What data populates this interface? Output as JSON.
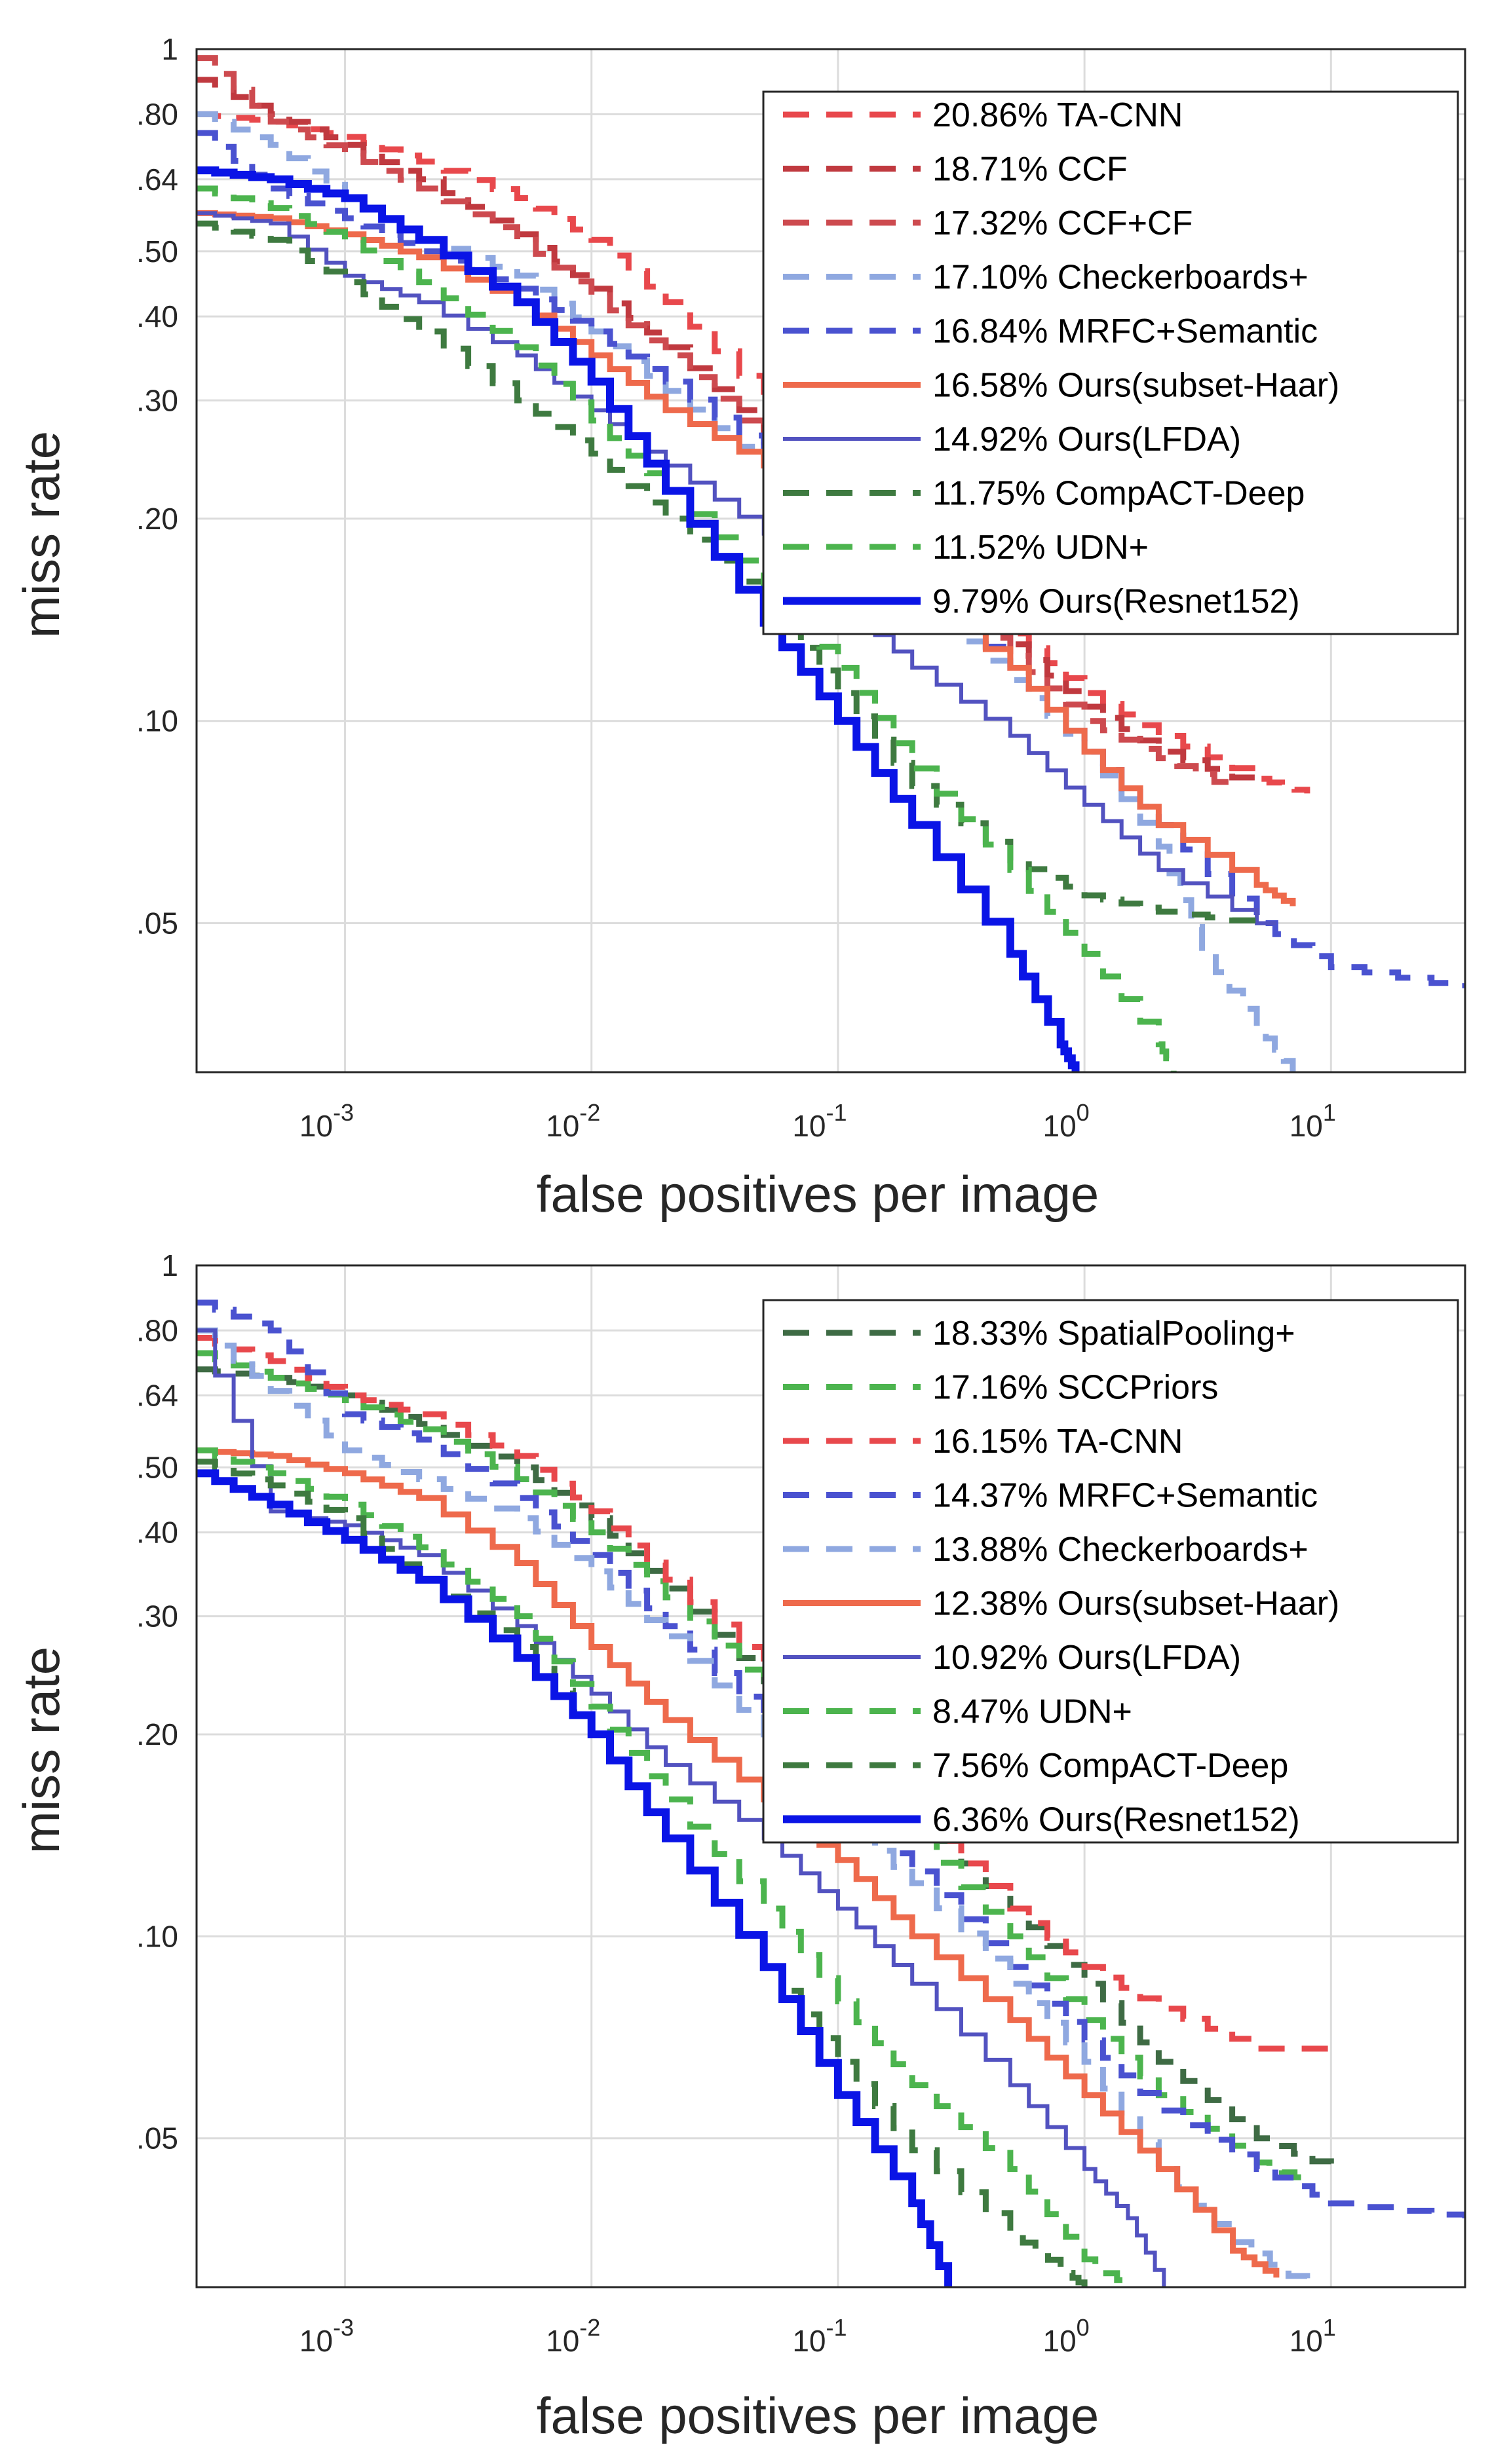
{
  "chart_data": [
    {
      "type": "line",
      "title": "",
      "xlabel": "false positives per image",
      "ylabel": "miss rate",
      "xscale": "log",
      "yscale": "log",
      "xlim": [
        0.00025,
        35
      ],
      "ylim": [
        0.03,
        1
      ],
      "grid": true,
      "legend_position": "top-right",
      "x_ticks": [
        {
          "value": 0.001,
          "base": "10",
          "exp": "-3"
        },
        {
          "value": 0.01,
          "base": "10",
          "exp": "-2"
        },
        {
          "value": 0.1,
          "base": "10",
          "exp": "-1"
        },
        {
          "value": 1,
          "base": "10",
          "exp": "0"
        },
        {
          "value": 10,
          "base": "10",
          "exp": "1"
        }
      ],
      "y_ticks": [
        {
          "value": 1,
          "label": "1"
        },
        {
          "value": 0.8,
          "label": ".80"
        },
        {
          "value": 0.64,
          "label": ".64"
        },
        {
          "value": 0.5,
          "label": ".50"
        },
        {
          "value": 0.4,
          "label": ".40"
        },
        {
          "value": 0.3,
          "label": ".30"
        },
        {
          "value": 0.2,
          "label": ".20"
        },
        {
          "value": 0.1,
          "label": ".10"
        },
        {
          "value": 0.05,
          "label": ".05"
        }
      ],
      "series": [
        {
          "name": "20.86% TA-CNN",
          "color": "#e8484c",
          "dash": "dashed",
          "width": 9,
          "x": [
            0.00025,
            0.0005,
            0.001,
            0.002,
            0.005,
            0.01,
            0.02,
            0.05,
            0.1,
            0.2,
            0.5,
            1,
            2,
            5,
            8
          ],
          "y": [
            0.8,
            0.78,
            0.74,
            0.68,
            0.6,
            0.52,
            0.42,
            0.3,
            0.23,
            0.18,
            0.135,
            0.11,
            0.095,
            0.082,
            0.078
          ]
        },
        {
          "name": "18.71% CCF",
          "color": "#c0393f",
          "dash": "dashed",
          "width": 9,
          "x": [
            0.00025,
            0.0005,
            0.001,
            0.002,
            0.005,
            0.01,
            0.02,
            0.05,
            0.1,
            0.2,
            0.5,
            1,
            2,
            5
          ],
          "y": [
            0.9,
            0.8,
            0.72,
            0.64,
            0.53,
            0.44,
            0.36,
            0.27,
            0.21,
            0.17,
            0.13,
            0.105,
            0.09,
            0.08
          ]
        },
        {
          "name": "17.32% CCF+CF",
          "color": "#cd4a4f",
          "dash": "dashed",
          "width": 9,
          "x": [
            0.00025,
            0.0005,
            0.001,
            0.002,
            0.005,
            0.01,
            0.02,
            0.05,
            0.1,
            0.2,
            0.5,
            1,
            2,
            4
          ],
          "y": [
            0.97,
            0.78,
            0.7,
            0.62,
            0.52,
            0.43,
            0.35,
            0.26,
            0.2,
            0.16,
            0.125,
            0.1,
            0.088,
            0.079
          ]
        },
        {
          "name": "17.10% Checkerboards+",
          "color": "#8fa8e0",
          "dash": "dashed",
          "width": 9,
          "x": [
            0.00025,
            0.0005,
            0.001,
            0.002,
            0.005,
            0.01,
            0.02,
            0.05,
            0.1,
            0.2,
            0.5,
            1,
            2,
            3,
            5,
            7
          ],
          "y": [
            0.8,
            0.72,
            0.6,
            0.52,
            0.46,
            0.38,
            0.31,
            0.24,
            0.19,
            0.15,
            0.115,
            0.09,
            0.065,
            0.045,
            0.035,
            0.03
          ]
        },
        {
          "name": "16.84% MRFC+Semantic",
          "color": "#4a52d0",
          "dash": "dashed",
          "width": 9,
          "x": [
            0.00025,
            0.0005,
            0.001,
            0.002,
            0.005,
            0.01,
            0.02,
            0.05,
            0.1,
            0.2,
            0.5,
            1,
            2,
            5,
            10,
            35
          ],
          "y": [
            0.75,
            0.62,
            0.56,
            0.5,
            0.44,
            0.38,
            0.32,
            0.25,
            0.2,
            0.16,
            0.12,
            0.09,
            0.07,
            0.05,
            0.043,
            0.04
          ]
        },
        {
          "name": "16.58% Ours(subset-Haar)",
          "color": "#ee6a4c",
          "dash": "solid",
          "width": 9,
          "x": [
            0.00025,
            0.0005,
            0.001,
            0.002,
            0.005,
            0.01,
            0.02,
            0.05,
            0.1,
            0.2,
            0.5,
            1,
            2,
            5,
            7
          ],
          "y": [
            0.57,
            0.56,
            0.53,
            0.49,
            0.42,
            0.35,
            0.29,
            0.24,
            0.19,
            0.155,
            0.12,
            0.09,
            0.07,
            0.057,
            0.053
          ]
        },
        {
          "name": "14.92% Ours(LFDA)",
          "color": "#5252c0",
          "dash": "solid",
          "width": 6,
          "x": [
            0.00025,
            0.0005,
            0.001,
            0.002,
            0.005,
            0.01,
            0.02,
            0.05,
            0.1,
            0.2,
            0.5,
            1,
            2,
            5,
            6
          ],
          "y": [
            0.57,
            0.55,
            0.46,
            0.42,
            0.35,
            0.29,
            0.24,
            0.19,
            0.15,
            0.12,
            0.095,
            0.075,
            0.06,
            0.05,
            0.05
          ]
        },
        {
          "name": "11.75% CompACT-Deep",
          "color": "#3e7a40",
          "dash": "dashed",
          "width": 9,
          "x": [
            0.00025,
            0.0005,
            0.001,
            0.002,
            0.005,
            0.01,
            0.02,
            0.05,
            0.1,
            0.2,
            0.5,
            1,
            2,
            5
          ],
          "y": [
            0.55,
            0.52,
            0.45,
            0.38,
            0.3,
            0.25,
            0.2,
            0.15,
            0.11,
            0.08,
            0.062,
            0.055,
            0.052,
            0.05
          ]
        },
        {
          "name": "11.52% UDN+",
          "color": "#4cb44e",
          "dash": "dashed",
          "width": 9,
          "x": [
            0.00025,
            0.0005,
            0.001,
            0.002,
            0.005,
            0.01,
            0.02,
            0.05,
            0.1,
            0.2,
            0.5,
            1,
            2,
            2.3
          ],
          "y": [
            0.62,
            0.58,
            0.52,
            0.45,
            0.36,
            0.28,
            0.22,
            0.16,
            0.12,
            0.085,
            0.06,
            0.045,
            0.033,
            0.03
          ]
        },
        {
          "name": "9.79% Ours(Resnet152)",
          "color": "#0a14e6",
          "dash": "solid",
          "width": 12,
          "x": [
            0.00025,
            0.0005,
            0.001,
            0.002,
            0.005,
            0.01,
            0.02,
            0.05,
            0.1,
            0.2,
            0.5,
            0.8,
            0.92
          ],
          "y": [
            0.66,
            0.64,
            0.6,
            0.52,
            0.42,
            0.32,
            0.22,
            0.14,
            0.1,
            0.07,
            0.045,
            0.033,
            0.03
          ]
        }
      ]
    },
    {
      "type": "line",
      "title": "",
      "xlabel": "false positives per image",
      "ylabel": "miss rate",
      "xscale": "log",
      "yscale": "log",
      "xlim": [
        0.00025,
        35
      ],
      "ylim": [
        0.03,
        1
      ],
      "grid": true,
      "legend_position": "top-right",
      "x_ticks": [
        {
          "value": 0.001,
          "base": "10",
          "exp": "-3"
        },
        {
          "value": 0.01,
          "base": "10",
          "exp": "-2"
        },
        {
          "value": 0.1,
          "base": "10",
          "exp": "-1"
        },
        {
          "value": 1,
          "base": "10",
          "exp": "0"
        },
        {
          "value": 10,
          "base": "10",
          "exp": "1"
        }
      ],
      "y_ticks": [
        {
          "value": 1,
          "label": "1"
        },
        {
          "value": 0.8,
          "label": ".80"
        },
        {
          "value": 0.64,
          "label": ".64"
        },
        {
          "value": 0.5,
          "label": ".50"
        },
        {
          "value": 0.4,
          "label": ".40"
        },
        {
          "value": 0.3,
          "label": ".30"
        },
        {
          "value": 0.2,
          "label": ".20"
        },
        {
          "value": 0.1,
          "label": ".10"
        },
        {
          "value": 0.05,
          "label": ".05"
        }
      ],
      "series": [
        {
          "name": "18.33% SpatialPooling+",
          "color": "#3e6b44",
          "dash": "dashed",
          "width": 9,
          "x": [
            0.00025,
            0.0005,
            0.001,
            0.002,
            0.005,
            0.01,
            0.02,
            0.05,
            0.1,
            0.2,
            0.5,
            1,
            2,
            5,
            10
          ],
          "y": [
            0.7,
            0.68,
            0.64,
            0.58,
            0.5,
            0.42,
            0.33,
            0.24,
            0.19,
            0.15,
            0.11,
            0.085,
            0.065,
            0.05,
            0.045
          ]
        },
        {
          "name": "17.16% SCCPriors",
          "color": "#4cb44e",
          "dash": "dashed",
          "width": 9,
          "x": [
            0.00025,
            0.0005,
            0.001,
            0.002,
            0.005,
            0.01,
            0.02,
            0.05,
            0.1,
            0.2,
            0.5,
            1,
            2,
            5,
            8
          ],
          "y": [
            0.74,
            0.68,
            0.63,
            0.57,
            0.48,
            0.4,
            0.32,
            0.23,
            0.18,
            0.14,
            0.1,
            0.075,
            0.058,
            0.046,
            0.043
          ]
        },
        {
          "name": "16.15% TA-CNN",
          "color": "#e8484c",
          "dash": "dashed",
          "width": 9,
          "x": [
            0.00025,
            0.0005,
            0.001,
            0.002,
            0.005,
            0.01,
            0.02,
            0.05,
            0.1,
            0.2,
            0.5,
            1,
            2,
            5,
            10
          ],
          "y": [
            0.78,
            0.72,
            0.64,
            0.6,
            0.52,
            0.43,
            0.34,
            0.25,
            0.19,
            0.15,
            0.11,
            0.09,
            0.078,
            0.068,
            0.068
          ]
        },
        {
          "name": "14.37% MRFC+Semantic",
          "color": "#4a52d0",
          "dash": "dashed",
          "width": 9,
          "x": [
            0.00025,
            0.0005,
            0.001,
            0.002,
            0.005,
            0.01,
            0.02,
            0.05,
            0.1,
            0.2,
            0.5,
            1,
            2,
            5,
            10,
            35
          ],
          "y": [
            0.88,
            0.8,
            0.6,
            0.55,
            0.45,
            0.37,
            0.29,
            0.21,
            0.16,
            0.125,
            0.09,
            0.07,
            0.055,
            0.045,
            0.04,
            0.038
          ]
        },
        {
          "name": "13.88% Checkerboards+",
          "color": "#8fa8e0",
          "dash": "dashed",
          "width": 9,
          "x": [
            0.00025,
            0.0005,
            0.001,
            0.002,
            0.005,
            0.01,
            0.02,
            0.05,
            0.1,
            0.2,
            0.5,
            1,
            2,
            4,
            8
          ],
          "y": [
            0.8,
            0.65,
            0.53,
            0.48,
            0.42,
            0.35,
            0.28,
            0.2,
            0.15,
            0.12,
            0.085,
            0.065,
            0.045,
            0.035,
            0.03
          ]
        },
        {
          "name": "12.38% Ours(subset-Haar)",
          "color": "#ee6a4c",
          "dash": "solid",
          "width": 9,
          "x": [
            0.00025,
            0.0005,
            0.001,
            0.002,
            0.005,
            0.01,
            0.02,
            0.05,
            0.1,
            0.2,
            0.5,
            1,
            2,
            4,
            6
          ],
          "y": [
            0.53,
            0.52,
            0.49,
            0.45,
            0.36,
            0.27,
            0.21,
            0.16,
            0.13,
            0.1,
            0.075,
            0.058,
            0.045,
            0.034,
            0.031
          ]
        },
        {
          "name": "10.92% Ours(LFDA)",
          "color": "#5252c0",
          "dash": "solid",
          "width": 6,
          "x": [
            0.00025,
            0.0005,
            0.001,
            0.002,
            0.005,
            0.01,
            0.02,
            0.05,
            0.1,
            0.2,
            0.5,
            1,
            1.5,
            2.1
          ],
          "y": [
            0.8,
            0.43,
            0.41,
            0.37,
            0.29,
            0.23,
            0.18,
            0.14,
            0.11,
            0.085,
            0.06,
            0.045,
            0.038,
            0.03
          ]
        },
        {
          "name": "8.47% UDN+",
          "color": "#4cb44e",
          "dash": "dashed",
          "width": 9,
          "x": [
            0.00025,
            0.0005,
            0.001,
            0.002,
            0.005,
            0.01,
            0.02,
            0.05,
            0.1,
            0.2,
            0.5,
            1,
            1.5
          ],
          "y": [
            0.53,
            0.49,
            0.44,
            0.38,
            0.3,
            0.22,
            0.16,
            0.11,
            0.08,
            0.06,
            0.045,
            0.033,
            0.03
          ]
        },
        {
          "name": "7.56% CompACT-Deep",
          "color": "#3e7a40",
          "dash": "dashed",
          "width": 9,
          "x": [
            0.00025,
            0.0005,
            0.001,
            0.002,
            0.005,
            0.01,
            0.02,
            0.05,
            0.1,
            0.2,
            0.5,
            0.8,
            1
          ],
          "y": [
            0.51,
            0.47,
            0.42,
            0.34,
            0.27,
            0.2,
            0.14,
            0.09,
            0.065,
            0.048,
            0.036,
            0.032,
            0.03
          ]
        },
        {
          "name": "6.36% Ours(Resnet152)",
          "color": "#0a14e6",
          "dash": "solid",
          "width": 12,
          "x": [
            0.00025,
            0.0005,
            0.001,
            0.002,
            0.005,
            0.01,
            0.02,
            0.05,
            0.1,
            0.2,
            0.28
          ],
          "y": [
            0.49,
            0.44,
            0.39,
            0.34,
            0.26,
            0.2,
            0.14,
            0.09,
            0.058,
            0.04,
            0.03
          ]
        }
      ]
    }
  ]
}
